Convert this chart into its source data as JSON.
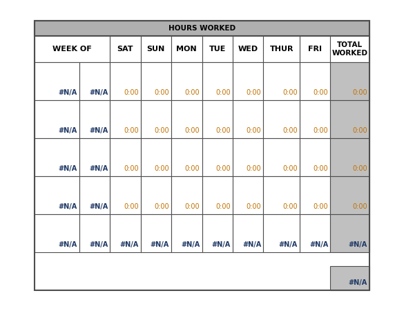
{
  "title": "HOURS WORKED",
  "header_bg": "#b0b0b0",
  "total_col_bg": "#c0c0c0",
  "white_bg": "#ffffff",
  "border_color": "#4d4d4d",
  "page_bg": "#ffffff",
  "na_color": "#1f3864",
  "zero_color": "#c07000",
  "col_headers": [
    "WEEK OF",
    "",
    "SAT",
    "SUN",
    "MON",
    "TUE",
    "WED",
    "THUR",
    "FRI",
    "TOTAL\nWORKED"
  ],
  "data_rows": [
    [
      "#N/A",
      "#N/A",
      "0:00",
      "0:00",
      "0:00",
      "0:00",
      "0:00",
      "0:00",
      "0:00",
      "0:00"
    ],
    [
      "#N/A",
      "#N/A",
      "0:00",
      "0:00",
      "0:00",
      "0:00",
      "0:00",
      "0:00",
      "0:00",
      "0:00"
    ],
    [
      "#N/A",
      "#N/A",
      "0:00",
      "0:00",
      "0:00",
      "0:00",
      "0:00",
      "0:00",
      "0:00",
      "0:00"
    ],
    [
      "#N/A",
      "#N/A",
      "0:00",
      "0:00",
      "0:00",
      "0:00",
      "0:00",
      "0:00",
      "0:00",
      "0:00"
    ],
    [
      "#N/A",
      "#N/A",
      "#N/A",
      "#N/A",
      "#N/A",
      "#N/A",
      "#N/A",
      "#N/A",
      "#N/A",
      "#N/A"
    ]
  ],
  "fig_width": 5.85,
  "fig_height": 4.5,
  "dpi": 100
}
